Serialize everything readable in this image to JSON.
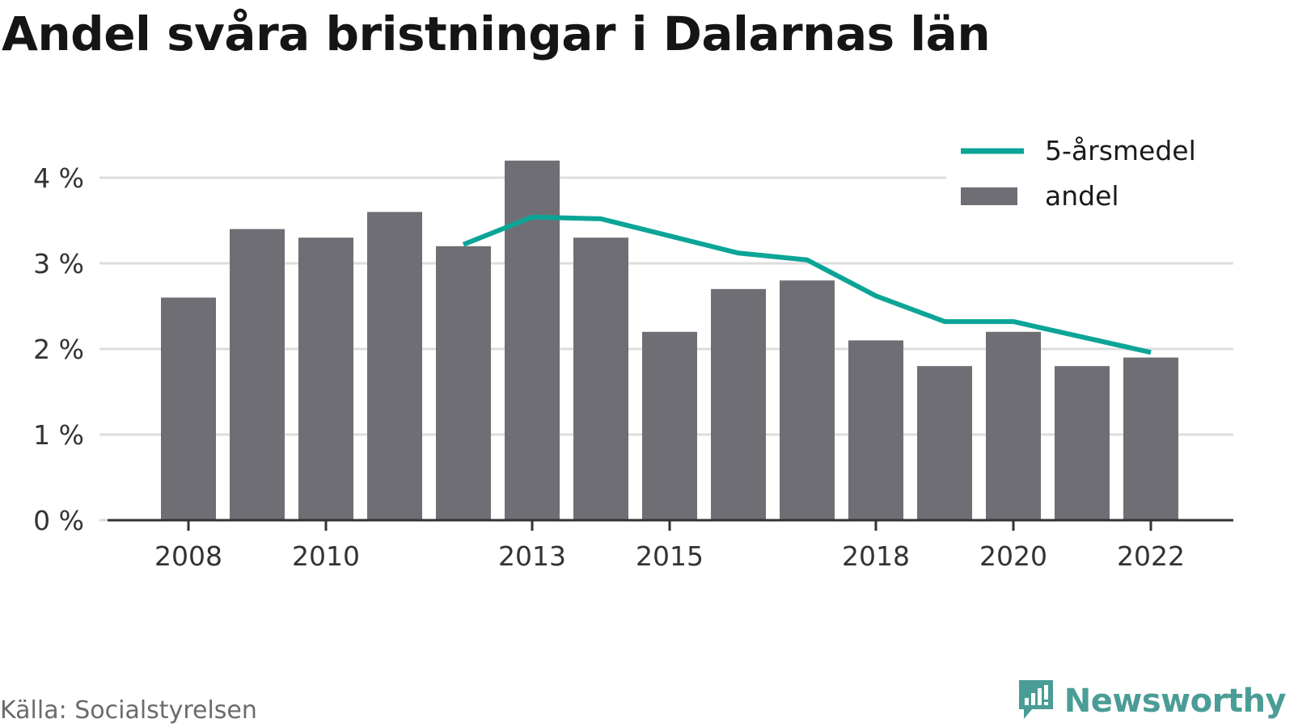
{
  "title": "Andel svåra bristningar i Dalarnas län",
  "source": "Källa: Socialstyrelsen",
  "brand": "Newsworthy",
  "colors": {
    "bar": "#6f6e74",
    "line": "#0ba597",
    "grid": "#dddddd",
    "axis": "#333333",
    "brand": "#4a9d96"
  },
  "chart_data": {
    "type": "bar",
    "x": [
      2008,
      2009,
      2010,
      2011,
      2012,
      2013,
      2014,
      2015,
      2016,
      2017,
      2018,
      2019,
      2020,
      2021,
      2022
    ],
    "x_tick_labels": [
      "2008",
      "2010",
      "2013",
      "2015",
      "2018",
      "2020",
      "2022"
    ],
    "ylim": [
      0,
      4
    ],
    "y_ticks": [
      0,
      1,
      2,
      3,
      4
    ],
    "y_tick_labels": [
      "0 %",
      "1 %",
      "2 %",
      "3 %",
      "4 %"
    ],
    "grid": true,
    "legend_position": "top-right",
    "series": [
      {
        "name": "andel",
        "type": "bar",
        "unit": "%",
        "values": [
          2.6,
          3.4,
          3.3,
          3.6,
          3.2,
          4.2,
          3.3,
          2.2,
          2.7,
          2.8,
          2.1,
          1.8,
          2.2,
          1.8,
          1.9
        ]
      },
      {
        "name": "5-årsmedel",
        "type": "line",
        "unit": "%",
        "values": [
          null,
          null,
          null,
          null,
          3.22,
          3.54,
          3.52,
          3.32,
          3.12,
          3.04,
          2.62,
          2.32,
          2.32,
          2.14,
          1.96
        ]
      }
    ],
    "legend": [
      "5-årsmedel",
      "andel"
    ]
  }
}
